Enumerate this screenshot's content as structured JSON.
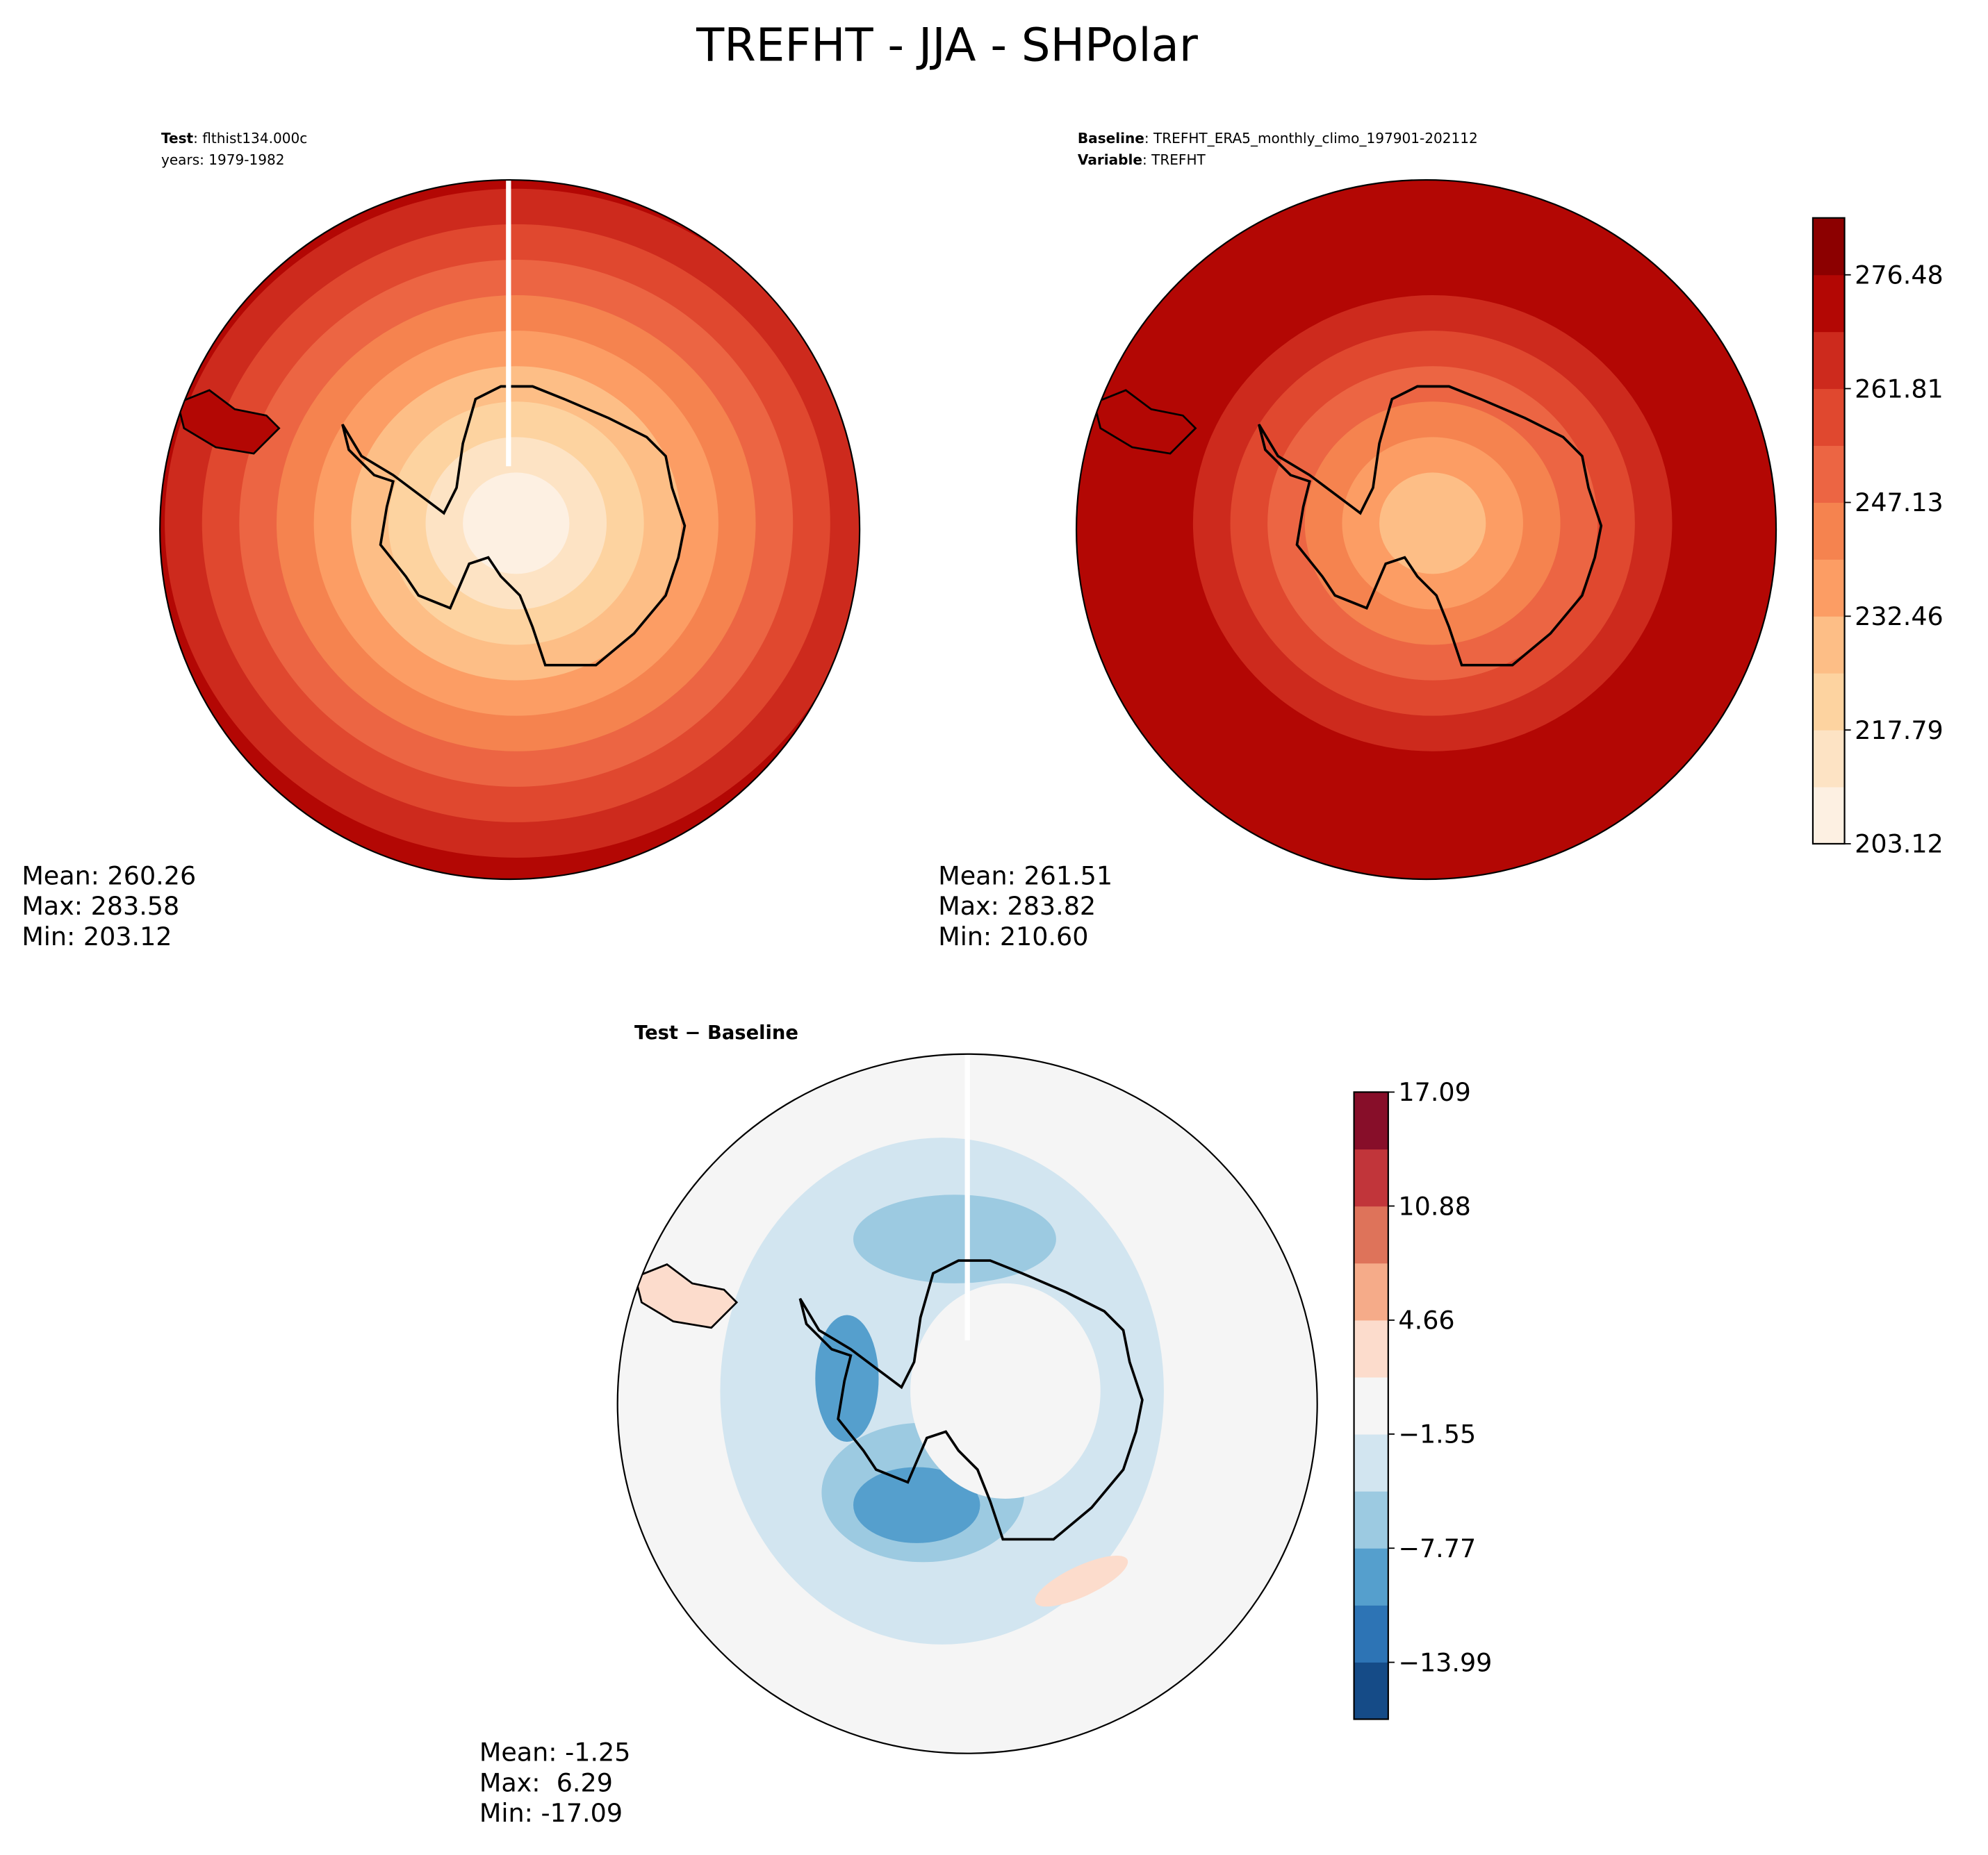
{
  "title": "TREFHT - JJA - SHPolar",
  "panels": [
    {
      "head_bold": "Test",
      "head_text": ": flthist134.000c",
      "sub_text": "years: 1979-1982",
      "stats": [
        "Mean: 260.26",
        "Max: 283.58",
        "Min: 203.12"
      ]
    },
    {
      "head_bold": "Baseline",
      "head_text": ": TREFHT_ERA5_monthly_climo_197901-202112",
      "sub_bold": "Variable",
      "sub_text": ": TREFHT",
      "stats": [
        "Mean: 261.51",
        "Max: 283.82",
        "Min: 210.60"
      ]
    },
    {
      "head_bold": "Test − Baseline",
      "stats": [
        "Mean: -1.25",
        "Max:  6.29",
        "Min: -17.09"
      ]
    }
  ],
  "colorbars": [
    {
      "lim": [
        203.12,
        283.82
      ],
      "ticks": [
        203.12,
        217.79,
        232.46,
        247.13,
        261.81,
        276.48
      ],
      "colors": [
        "#fdf0e2",
        "#fde3c4",
        "#fdd3a0",
        "#fdbe86",
        "#fc9d64",
        "#f5834f",
        "#ec6543",
        "#e0482f",
        "#cd2a1d",
        "#b30704",
        "#8c0000"
      ]
    },
    {
      "lim": [
        -17.09,
        17.09
      ],
      "ticks": [
        {
          "value": -13.99,
          "label": "−13.99"
        },
        {
          "value": -7.77,
          "label": "−7.77"
        },
        {
          "value": -1.55,
          "label": "−1.55"
        },
        4.66,
        10.88,
        17.09
      ],
      "colors": [
        "#154b87",
        "#2d74b5",
        "#559fcd",
        "#9ccae1",
        "#d2e5f0",
        "#f5f5f5",
        "#fcdccc",
        "#f5ab89",
        "#de735a",
        "#c1353a",
        "#870e29"
      ]
    }
  ]
}
